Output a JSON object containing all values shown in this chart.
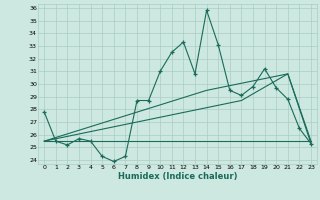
{
  "background_color": "#cce8e0",
  "grid_color": "#aaccC4",
  "line_color": "#1a6b5a",
  "xlabel": "Humidex (Indice chaleur)",
  "ylim": [
    24,
    36
  ],
  "xlim": [
    -0.5,
    23.5
  ],
  "yticks": [
    24,
    25,
    26,
    27,
    28,
    29,
    30,
    31,
    32,
    33,
    34,
    35,
    36
  ],
  "xticks": [
    0,
    1,
    2,
    3,
    4,
    5,
    6,
    7,
    8,
    9,
    10,
    11,
    12,
    13,
    14,
    15,
    16,
    17,
    18,
    19,
    20,
    21,
    22,
    23
  ],
  "series1_x": [
    0,
    1,
    2,
    3,
    4,
    5,
    6,
    7,
    8,
    9,
    10,
    11,
    12,
    13,
    14,
    15,
    16,
    17,
    18,
    19,
    20,
    21,
    22,
    23
  ],
  "series1_y": [
    27.8,
    25.5,
    25.2,
    25.7,
    25.5,
    24.3,
    23.9,
    24.3,
    28.7,
    28.7,
    31.0,
    32.5,
    33.3,
    30.8,
    35.8,
    33.1,
    29.5,
    29.1,
    29.8,
    31.2,
    29.7,
    28.8,
    26.5,
    25.3
  ],
  "series2_x": [
    0,
    14,
    23
  ],
  "series2_y": [
    25.5,
    25.5,
    25.5
  ],
  "series3_x": [
    0,
    14,
    21,
    23
  ],
  "series3_y": [
    25.5,
    29.5,
    30.8,
    25.5
  ],
  "series4_x": [
    0,
    17,
    21,
    23
  ],
  "series4_y": [
    25.5,
    28.7,
    30.8,
    25.3
  ]
}
